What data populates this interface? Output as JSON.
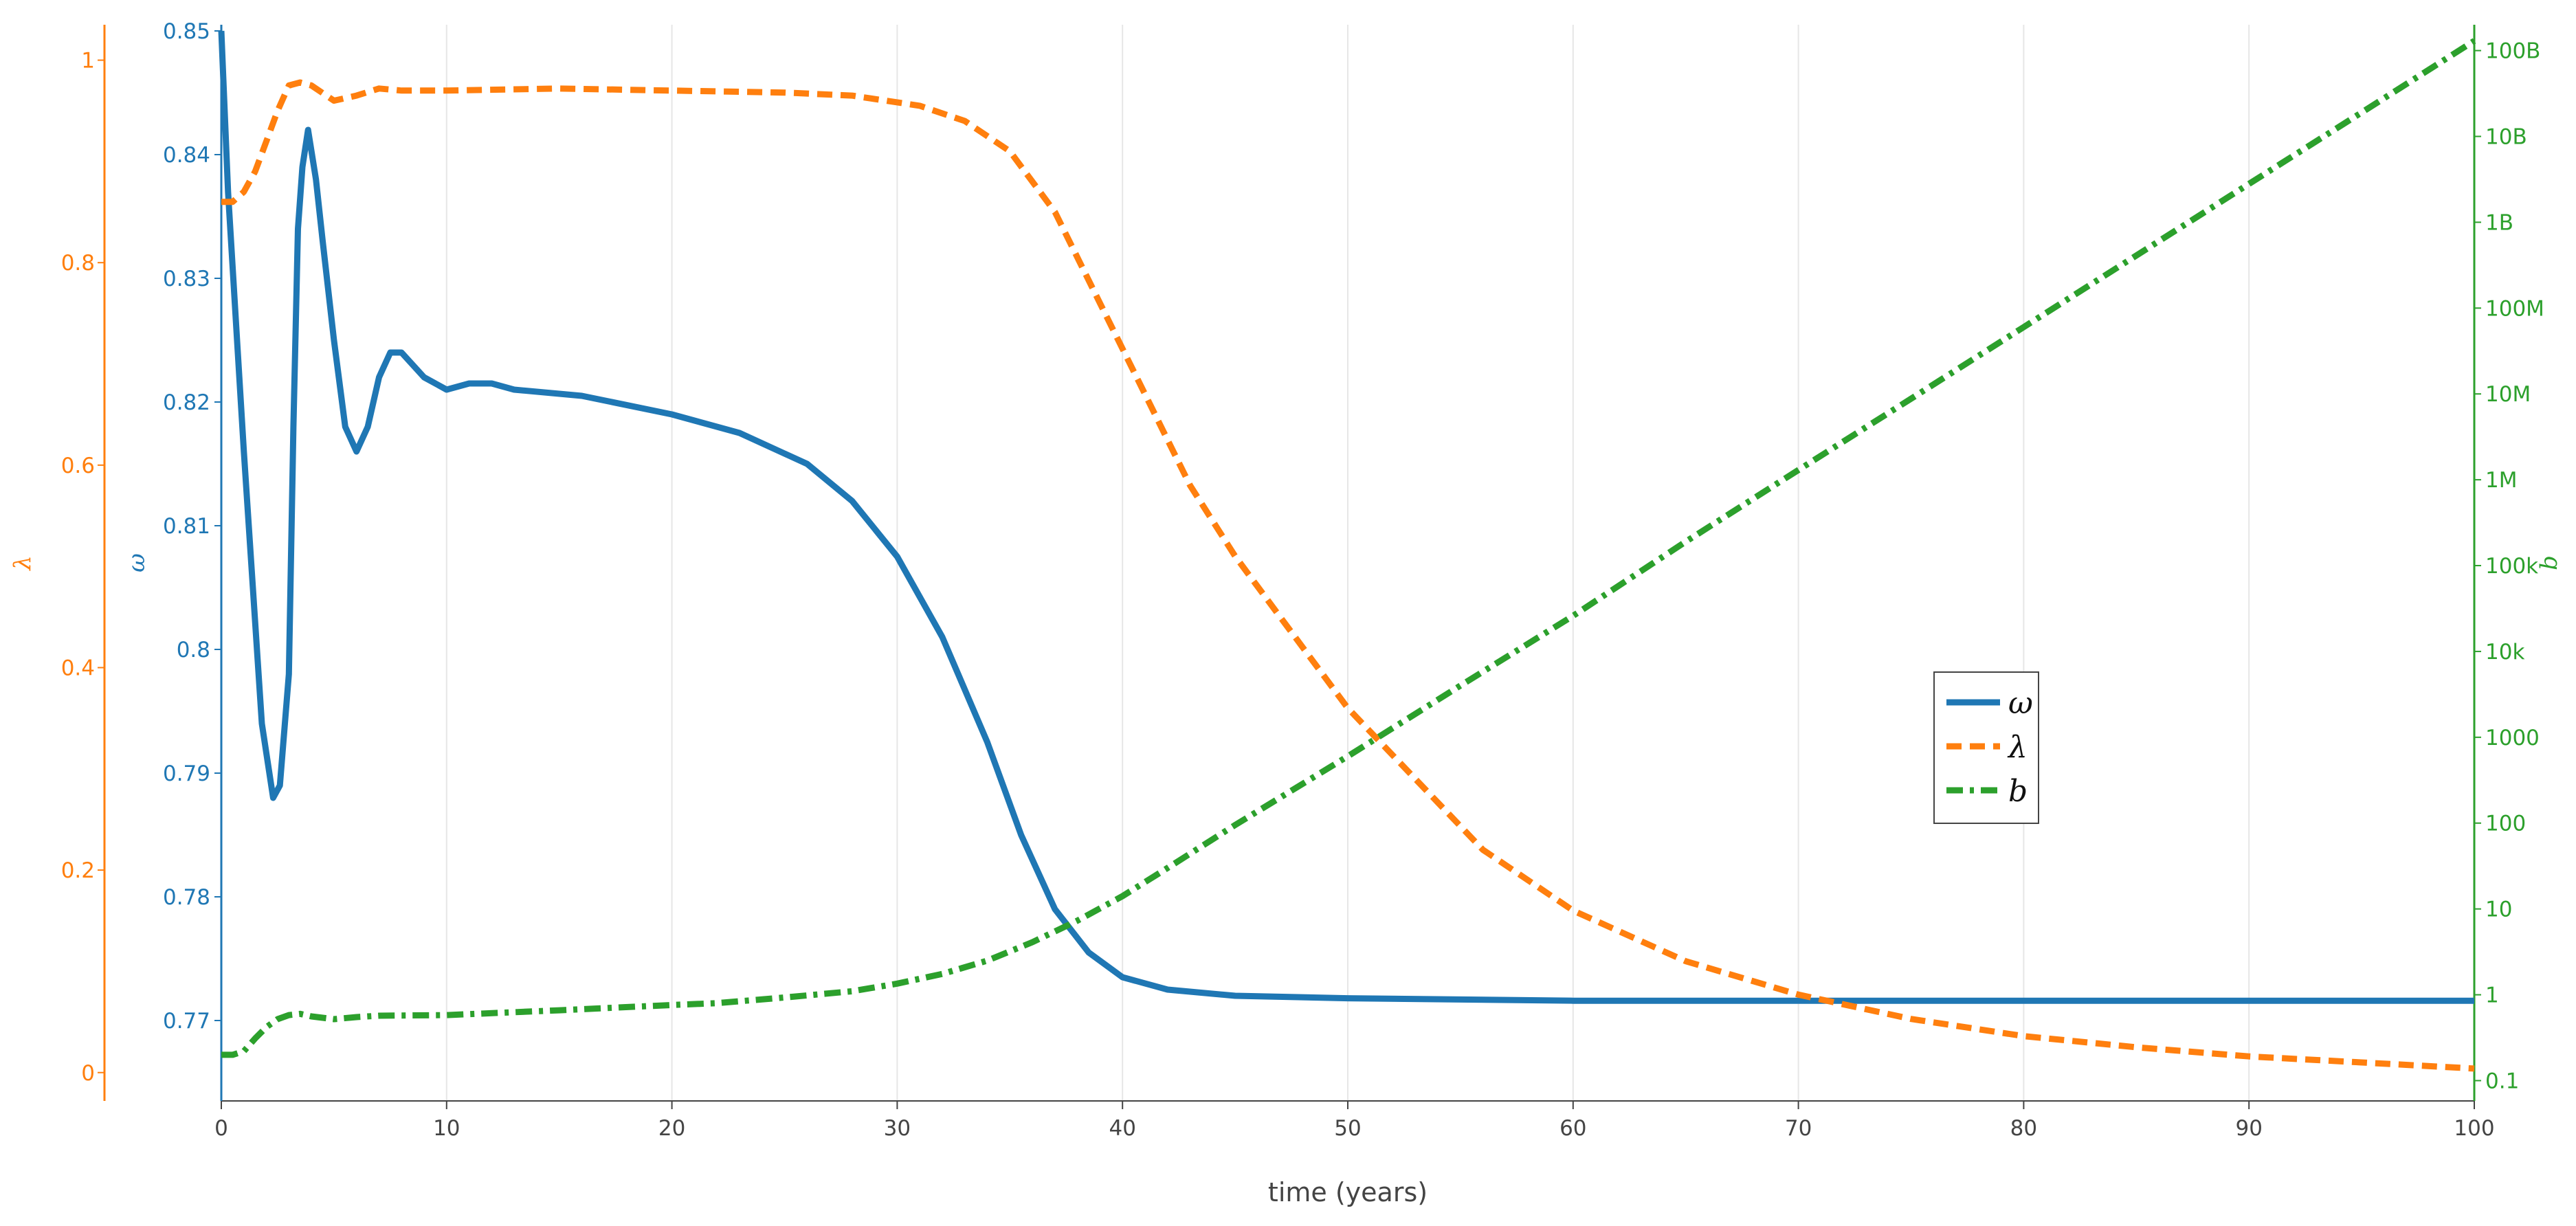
{
  "chart_data": {
    "type": "line",
    "xlabel": "time (years)",
    "xlim": [
      0,
      100
    ],
    "x_ticks": [
      0,
      10,
      20,
      30,
      40,
      50,
      60,
      70,
      80,
      90,
      100
    ],
    "grid": "vertical",
    "legend_position": "center-right",
    "axes": {
      "omega": {
        "label": "ω",
        "side": "left-inner",
        "scale": "linear",
        "range": [
          0.7635,
          0.8505
        ],
        "ticks": [
          0.77,
          0.78,
          0.79,
          0.8,
          0.81,
          0.82,
          0.83,
          0.84,
          0.85
        ],
        "tick_labels": [
          "0.77",
          "0.78",
          "0.79",
          "0.8",
          "0.81",
          "0.82",
          "0.83",
          "0.84",
          "0.85"
        ],
        "color": "#1f77b4"
      },
      "lambda": {
        "label": "λ",
        "side": "left-outer",
        "scale": "linear",
        "range": [
          -0.028,
          1.035
        ],
        "ticks": [
          0,
          0.2,
          0.4,
          0.6,
          0.8,
          1
        ],
        "tick_labels": [
          "0",
          "0.2",
          "0.4",
          "0.6",
          "0.8",
          "1"
        ],
        "color": "#ff7f0e"
      },
      "b": {
        "label": "b",
        "side": "right",
        "scale": "log",
        "range": [
          0.058,
          200000000000
        ],
        "ticks": [
          0.1,
          1,
          10,
          100,
          1000,
          10000,
          100000,
          1000000,
          10000000,
          100000000,
          1000000000,
          10000000000,
          100000000000
        ],
        "tick_labels": [
          "0.1",
          "1",
          "10",
          "100",
          "1000",
          "10k",
          "100k",
          "1M",
          "10M",
          "100M",
          "1B",
          "10B",
          "100B"
        ],
        "color": "#2ca02c"
      }
    },
    "legend": [
      {
        "label": "ω",
        "series": "omega"
      },
      {
        "label": "λ",
        "series": "lambda"
      },
      {
        "label": "b",
        "series": "b"
      }
    ],
    "series": [
      {
        "name": "ω",
        "axis": "omega",
        "color": "#1f77b4",
        "dash": "solid",
        "points": [
          [
            0,
            0.85
          ],
          [
            0.3,
            0.837
          ],
          [
            0.7,
            0.825
          ],
          [
            1.0,
            0.816
          ],
          [
            1.4,
            0.805
          ],
          [
            1.8,
            0.794
          ],
          [
            2.3,
            0.788
          ],
          [
            2.6,
            0.789
          ],
          [
            3.0,
            0.798
          ],
          [
            3.2,
            0.818
          ],
          [
            3.4,
            0.834
          ],
          [
            3.6,
            0.839
          ],
          [
            3.85,
            0.842
          ],
          [
            4.2,
            0.838
          ],
          [
            4.5,
            0.833
          ],
          [
            5.0,
            0.825
          ],
          [
            5.5,
            0.818
          ],
          [
            6.0,
            0.816
          ],
          [
            6.5,
            0.818
          ],
          [
            7.0,
            0.822
          ],
          [
            7.5,
            0.824
          ],
          [
            8.0,
            0.824
          ],
          [
            9.0,
            0.822
          ],
          [
            10.0,
            0.821
          ],
          [
            11.0,
            0.8215
          ],
          [
            12.0,
            0.8215
          ],
          [
            13.0,
            0.821
          ],
          [
            16.0,
            0.8205
          ],
          [
            20.0,
            0.819
          ],
          [
            23.0,
            0.8175
          ],
          [
            26.0,
            0.815
          ],
          [
            28.0,
            0.812
          ],
          [
            30.0,
            0.8075
          ],
          [
            32.0,
            0.801
          ],
          [
            34.0,
            0.7925
          ],
          [
            35.5,
            0.785
          ],
          [
            37.0,
            0.779
          ],
          [
            38.5,
            0.7755
          ],
          [
            40.0,
            0.7735
          ],
          [
            42.0,
            0.7725
          ],
          [
            45.0,
            0.772
          ],
          [
            50.0,
            0.7718
          ],
          [
            60.0,
            0.7716
          ],
          [
            80.0,
            0.7716
          ],
          [
            100.0,
            0.7716
          ]
        ]
      },
      {
        "name": "λ",
        "axis": "lambda",
        "color": "#ff7f0e",
        "dash": "dash",
        "points": [
          [
            0,
            0.86
          ],
          [
            0.5,
            0.86
          ],
          [
            1.0,
            0.87
          ],
          [
            1.5,
            0.89
          ],
          [
            2.0,
            0.92
          ],
          [
            2.5,
            0.95
          ],
          [
            3.0,
            0.975
          ],
          [
            3.5,
            0.978
          ],
          [
            4.0,
            0.975
          ],
          [
            5.0,
            0.96
          ],
          [
            6.0,
            0.965
          ],
          [
            7.0,
            0.972
          ],
          [
            8.0,
            0.97
          ],
          [
            10.0,
            0.97
          ],
          [
            15.0,
            0.972
          ],
          [
            20.0,
            0.97
          ],
          [
            25.0,
            0.968
          ],
          [
            28.0,
            0.965
          ],
          [
            31.0,
            0.955
          ],
          [
            33.0,
            0.94
          ],
          [
            35.0,
            0.91
          ],
          [
            37.0,
            0.85
          ],
          [
            39.0,
            0.76
          ],
          [
            41.0,
            0.67
          ],
          [
            43.0,
            0.58
          ],
          [
            45.0,
            0.51
          ],
          [
            48.0,
            0.42
          ],
          [
            50.0,
            0.36
          ],
          [
            53.0,
            0.29
          ],
          [
            56.0,
            0.22
          ],
          [
            60.0,
            0.16
          ],
          [
            65.0,
            0.11
          ],
          [
            70.0,
            0.077
          ],
          [
            75.0,
            0.053
          ],
          [
            80.0,
            0.036
          ],
          [
            85.0,
            0.025
          ],
          [
            90.0,
            0.016
          ],
          [
            95.0,
            0.01
          ],
          [
            100.0,
            0.004
          ]
        ]
      },
      {
        "name": "b",
        "axis": "b",
        "color": "#2ca02c",
        "dash": "dashdot",
        "points": [
          [
            0,
            0.2
          ],
          [
            0.5,
            0.2
          ],
          [
            1.0,
            0.22
          ],
          [
            1.5,
            0.31
          ],
          [
            2.0,
            0.42
          ],
          [
            2.5,
            0.52
          ],
          [
            3.0,
            0.58
          ],
          [
            3.5,
            0.6
          ],
          [
            4.0,
            0.56
          ],
          [
            5.0,
            0.52
          ],
          [
            6.0,
            0.55
          ],
          [
            7.0,
            0.57
          ],
          [
            10.0,
            0.58
          ],
          [
            15.0,
            0.66
          ],
          [
            20.0,
            0.76
          ],
          [
            22.0,
            0.8
          ],
          [
            25.0,
            0.93
          ],
          [
            28.0,
            1.1
          ],
          [
            30.0,
            1.35
          ],
          [
            32.0,
            1.75
          ],
          [
            34.0,
            2.5
          ],
          [
            36.0,
            4.1
          ],
          [
            38.0,
            7.3
          ],
          [
            40.0,
            14.1
          ],
          [
            42.0,
            30
          ],
          [
            45.0,
            95
          ],
          [
            50.0,
            600
          ],
          [
            55.0,
            4000
          ],
          [
            60.0,
            26000
          ],
          [
            65.0,
            190000
          ],
          [
            70.0,
            1300000
          ],
          [
            75.0,
            8800000
          ],
          [
            80.0,
            60000000
          ],
          [
            85.0,
            410000000
          ],
          [
            90.0,
            2800000000
          ],
          [
            95.0,
            19000000000
          ],
          [
            100.0,
            130000000000
          ]
        ]
      }
    ]
  }
}
